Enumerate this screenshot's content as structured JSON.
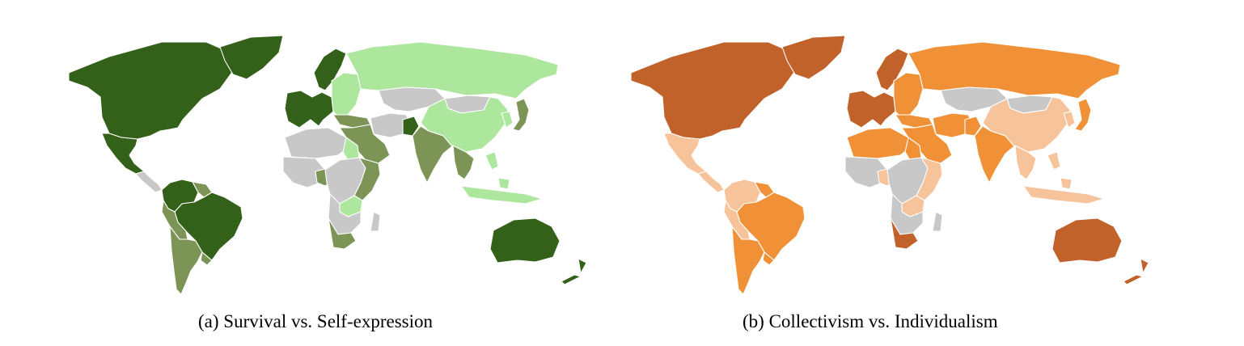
{
  "figure": {
    "panels": [
      {
        "id": "a",
        "caption": "(a) Survival vs. Self-expression",
        "palette": {
          "strong": "#336119",
          "medium": "#7c9455",
          "light": "#ade79e",
          "nodata": "#c8c8c8"
        },
        "regions": {
          "north_america": "strong",
          "greenland": "strong",
          "mexico": "strong",
          "central_america": "nodata",
          "colombia_venezuela": "strong",
          "guianas": "medium",
          "brazil": "strong",
          "peru_bolivia": "medium",
          "chile_argentina": "medium",
          "uruguay": "medium",
          "western_europe": "strong",
          "scandinavia": "strong",
          "eastern_europe": "light",
          "russia": "light",
          "central_asia": "nodata",
          "turkey": "medium",
          "middle_east": "medium",
          "iran_afghanistan": "nodata",
          "pakistan": "strong",
          "india": "medium",
          "china": "light",
          "mongolia": "nodata",
          "japan": "medium",
          "korea": "light",
          "southeast_asia": "medium",
          "indonesia_philippines": "light",
          "north_africa": "nodata",
          "egypt": "light",
          "west_africa": "nodata",
          "nigeria": "medium",
          "east_africa": "medium",
          "central_africa": "nodata",
          "southern_africa": "nodata",
          "zambia_zimbabwe": "light",
          "south_africa": "medium",
          "madagascar": "nodata",
          "australia": "strong",
          "new_zealand": "strong"
        }
      },
      {
        "id": "b",
        "caption": "(b) Collectivism vs. Individualism",
        "palette": {
          "strong": "#c1622a",
          "medium": "#f19137",
          "light": "#f7c39b",
          "nodata": "#c8c8c8"
        },
        "regions": {
          "north_america": "strong",
          "greenland": "strong",
          "mexico": "light",
          "central_america": "light",
          "colombia_venezuela": "light",
          "guianas": "medium",
          "brazil": "medium",
          "peru_bolivia": "light",
          "chile_argentina": "medium",
          "uruguay": "medium",
          "western_europe": "strong",
          "scandinavia": "strong",
          "eastern_europe": "medium",
          "russia": "medium",
          "central_asia": "nodata",
          "turkey": "medium",
          "middle_east": "medium",
          "iran_afghanistan": "medium",
          "pakistan": "medium",
          "india": "medium",
          "china": "light",
          "mongolia": "nodata",
          "japan": "medium",
          "korea": "light",
          "southeast_asia": "light",
          "indonesia_philippines": "light",
          "north_africa": "medium",
          "egypt": "medium",
          "west_africa": "nodata",
          "nigeria": "light",
          "east_africa": "light",
          "central_africa": "nodata",
          "southern_africa": "nodata",
          "zambia_zimbabwe": "light",
          "south_africa": "strong",
          "madagascar": "nodata",
          "australia": "strong",
          "new_zealand": "strong"
        }
      }
    ]
  }
}
